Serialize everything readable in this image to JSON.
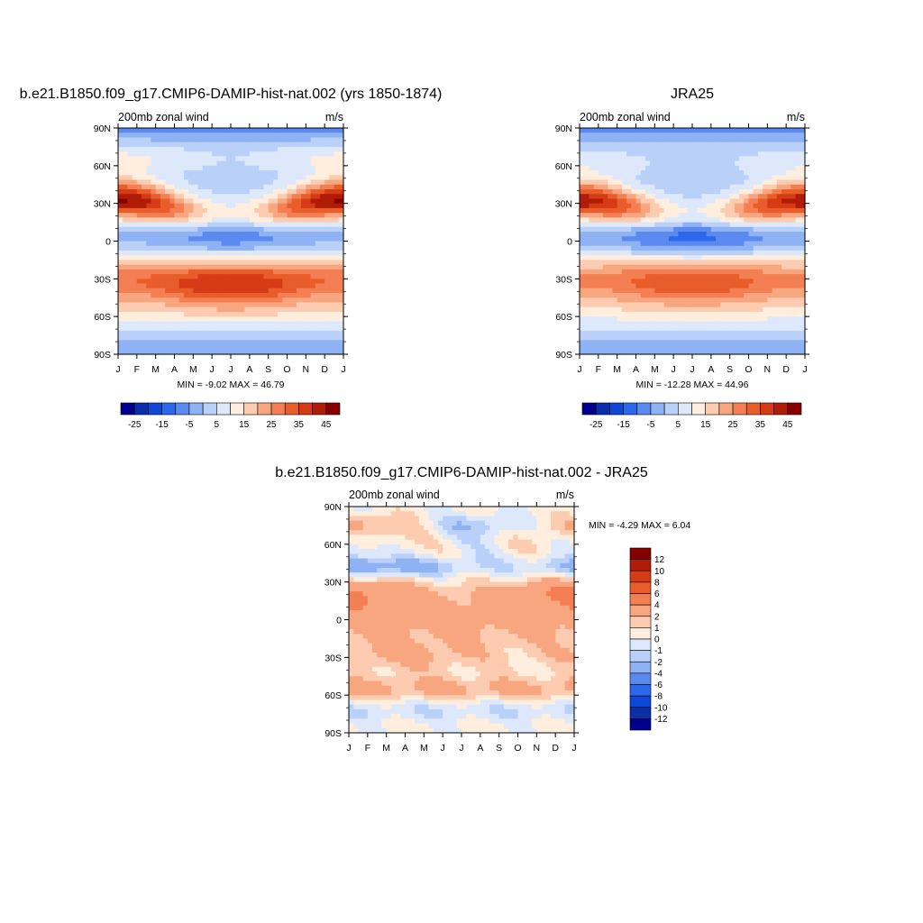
{
  "colors": {
    "full": [
      "#00008c",
      "#0a2fa6",
      "#0f47d6",
      "#2d68ea",
      "#5a8af0",
      "#8fb2f4",
      "#b9d0f8",
      "#dde9fb",
      "#ffeedd",
      "#fccbb0",
      "#f8a680",
      "#f37f52",
      "#e85d2a",
      "#d63b16",
      "#b01c08",
      "#870000"
    ],
    "diff": [
      "#00008c",
      "#0a2fa6",
      "#0f47d6",
      "#2d68ea",
      "#5a8af0",
      "#8fb2f4",
      "#b9d0f8",
      "#dde9fb",
      "#ffeedd",
      "#fccbb0",
      "#f8a680",
      "#f37f52",
      "#e85d2a",
      "#d63b16",
      "#b01c08",
      "#870000"
    ]
  },
  "panels": {
    "p1": {
      "title": "b.e21.B1850.f09_g17.CMIP6-DAMIP-hist-nat.002 (yrs 1850-1874)",
      "left_label": "200mb zonal wind",
      "right_label": "m/s",
      "minmax": "MIN =  -9.02 MAX =  46.79"
    },
    "p2": {
      "title": "JRA25",
      "left_label": "200mb zonal wind",
      "right_label": "m/s",
      "minmax": "MIN = -12.28 MAX =  44.96"
    },
    "p3": {
      "title": "b.e21.B1850.f09_g17.CMIP6-DAMIP-hist-nat.002 - JRA25",
      "left_label": "200mb zonal wind",
      "right_label": "m/s",
      "minmax": "MIN =  -4.29 MAX =   6.04"
    }
  },
  "chart_data": [
    {
      "type": "heatmap",
      "title": "b.e21.B1850.f09_g17.CMIP6-DAMIP-hist-nat.002 (yrs 1850-1874)",
      "variable": "200mb zonal wind",
      "units": "m/s",
      "x_ticks": [
        "J",
        "F",
        "M",
        "A",
        "M",
        "J",
        "J",
        "A",
        "S",
        "O",
        "N",
        "D",
        "J"
      ],
      "y_ticks": [
        "90N",
        "60N",
        "30N",
        "0",
        "30S",
        "60S",
        "90S"
      ],
      "colorbar_labels": [
        "-25",
        "-15",
        "-5",
        "5",
        "15",
        "25",
        "35",
        "45"
      ],
      "color_levels": [
        -30,
        -25,
        -20,
        -15,
        -10,
        -5,
        0,
        5,
        10,
        15,
        20,
        25,
        30,
        35,
        40,
        45,
        50
      ],
      "min": -9.02,
      "max": 46.79
    },
    {
      "type": "heatmap",
      "title": "JRA25",
      "variable": "200mb zonal wind",
      "units": "m/s",
      "x_ticks": [
        "J",
        "F",
        "M",
        "A",
        "M",
        "J",
        "J",
        "A",
        "S",
        "O",
        "N",
        "D",
        "J"
      ],
      "y_ticks": [
        "90N",
        "60N",
        "30N",
        "0",
        "30S",
        "60S",
        "90S"
      ],
      "colorbar_labels": [
        "-25",
        "-15",
        "-5",
        "5",
        "15",
        "25",
        "35",
        "45"
      ],
      "color_levels": [
        -30,
        -25,
        -20,
        -15,
        -10,
        -5,
        0,
        5,
        10,
        15,
        20,
        25,
        30,
        35,
        40,
        45,
        50
      ],
      "min": -12.28,
      "max": 44.96
    },
    {
      "type": "heatmap",
      "title": "b.e21.B1850.f09_g17.CMIP6-DAMIP-hist-nat.002 - JRA25",
      "variable": "200mb zonal wind",
      "units": "m/s",
      "x_ticks": [
        "J",
        "F",
        "M",
        "A",
        "M",
        "J",
        "J",
        "A",
        "S",
        "O",
        "N",
        "D",
        "J"
      ],
      "y_ticks": [
        "90N",
        "60N",
        "30N",
        "0",
        "30S",
        "60S",
        "90S"
      ],
      "colorbar_labels": [
        "12",
        "10",
        "8",
        "6",
        "4",
        "2",
        "1",
        "0",
        "-1",
        "-2",
        "-4",
        "-6",
        "-8",
        "-10",
        "-12"
      ],
      "color_levels": [
        -12,
        -10,
        -8,
        -6,
        -4,
        -2,
        -1,
        0,
        1,
        2,
        4,
        6,
        8,
        10,
        12
      ],
      "min": -4.29,
      "max": 6.04
    }
  ]
}
